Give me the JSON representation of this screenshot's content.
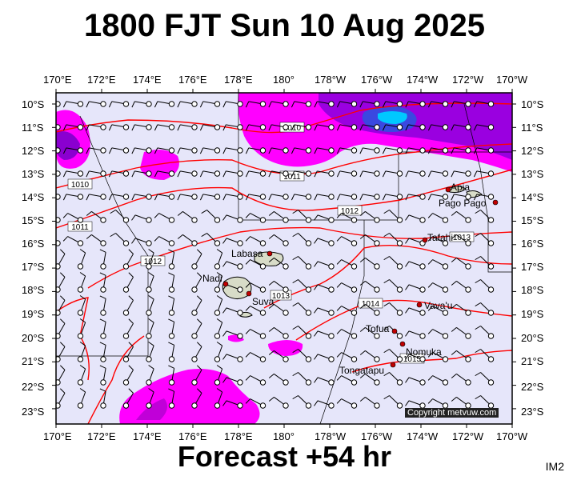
{
  "header": {
    "title": "1800 FJT Sun 10 Aug 2025"
  },
  "footer": {
    "forecast": "Forecast +54 hr",
    "product_code": "IM2"
  },
  "copyright": "Copyright metvuw.com",
  "colors": {
    "ocean": "#e6e6fa",
    "rain": "#ff00ff",
    "rain_heavy": "#8000c0",
    "rain_extreme": "#00c8ff",
    "isobar": "#ff0000",
    "land": "#d0d8c0"
  },
  "axes": {
    "lon_labels": [
      "170°E",
      "172°E",
      "174°E",
      "176°E",
      "178°E",
      "180°",
      "178°W",
      "176°W",
      "174°W",
      "172°W",
      "170°W"
    ],
    "lat_labels": [
      "10°S",
      "11°S",
      "12°S",
      "13°S",
      "14°S",
      "15°S",
      "16°S",
      "17°S",
      "18°S",
      "19°S",
      "20°S",
      "21°S",
      "22°S",
      "23°S"
    ]
  },
  "places": [
    {
      "name": "Apia"
    },
    {
      "name": "Pago Pago"
    },
    {
      "name": "Tafahi"
    },
    {
      "name": "Labasa"
    },
    {
      "name": "Nadi"
    },
    {
      "name": "Suva"
    },
    {
      "name": "Vava'u"
    },
    {
      "name": "Tofua"
    },
    {
      "name": "Nomuka"
    },
    {
      "name": "Tongatapu"
    }
  ],
  "isobar_labels": [
    "1010",
    "1011",
    "1012",
    "1013",
    "1014",
    "1015"
  ]
}
